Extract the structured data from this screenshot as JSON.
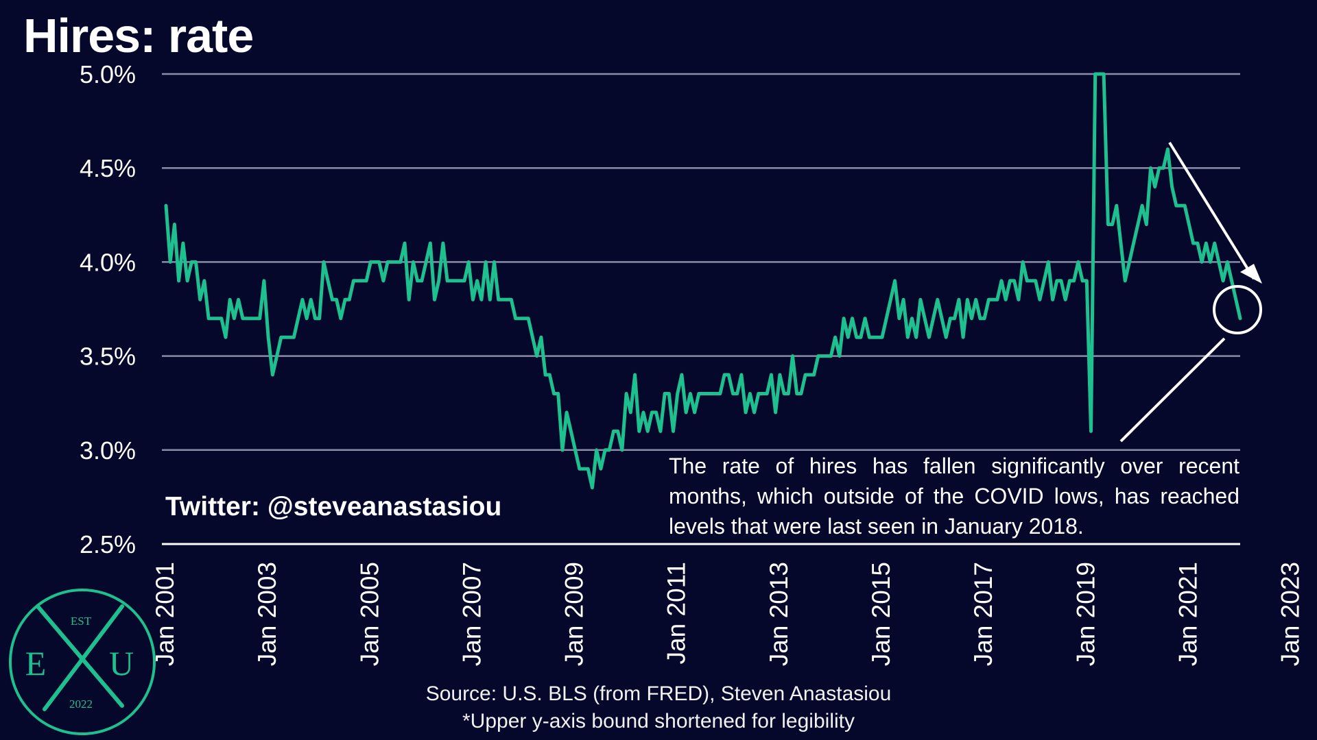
{
  "title": "Hires: rate",
  "twitter_handle": "Twitter: @steveanastasiou",
  "annotation": "The rate of hires has fallen significantly over recent months, which outside of the COVID lows, has reached levels that were last seen in January 2018.",
  "source": "Source: U.S. BLS (from FRED), Steven Anastasiou",
  "footnote": "*Upper y-axis bound shortened for legibility",
  "logo": {
    "top": "EST",
    "left": "E",
    "right": "U",
    "bottom": "2022"
  },
  "colors": {
    "background": "#05082a",
    "line": "#1ec08f",
    "grid": "#8a8ca8",
    "text": "#ffffff",
    "logo": "#1ec08f"
  },
  "chart_data": {
    "type": "line",
    "title": "Hires: rate",
    "xlabel": "",
    "ylabel": "",
    "ylim": [
      2.5,
      5.0
    ],
    "grid": true,
    "yticks": [
      "2.5%",
      "3.0%",
      "3.5%",
      "4.0%",
      "4.5%",
      "5.0%"
    ],
    "xticks": [
      "Jan 2001",
      "Jan 2003",
      "Jan 2005",
      "Jan 2007",
      "Jan 2009",
      "Jan 2011",
      "Jan 2013",
      "Jan 2015",
      "Jan 2017",
      "Jan 2019",
      "Jan 2021",
      "Jan 2023"
    ],
    "start": "Jan 2001",
    "frequency": "monthly",
    "series": [
      {
        "values": [
          4.3,
          4.0,
          4.2,
          3.9,
          4.1,
          3.9,
          4.0,
          4.0,
          3.8,
          3.9,
          3.7,
          3.7,
          3.7,
          3.7,
          3.6,
          3.8,
          3.7,
          3.8,
          3.7,
          3.7,
          3.7,
          3.7,
          3.7,
          3.9,
          3.6,
          3.4,
          3.5,
          3.6,
          3.6,
          3.6,
          3.6,
          3.7,
          3.8,
          3.7,
          3.8,
          3.7,
          3.7,
          4.0,
          3.9,
          3.8,
          3.8,
          3.7,
          3.8,
          3.8,
          3.9,
          3.9,
          3.9,
          3.9,
          4.0,
          4.0,
          4.0,
          3.9,
          4.0,
          4.0,
          4.0,
          4.0,
          4.1,
          3.8,
          4.0,
          3.9,
          3.9,
          4.0,
          4.1,
          3.8,
          3.9,
          4.1,
          3.9,
          3.9,
          3.9,
          3.9,
          3.9,
          4.0,
          3.8,
          3.9,
          3.8,
          4.0,
          3.8,
          4.0,
          3.8,
          3.8,
          3.8,
          3.8,
          3.7,
          3.7,
          3.7,
          3.7,
          3.6,
          3.5,
          3.6,
          3.4,
          3.4,
          3.3,
          3.3,
          3.0,
          3.2,
          3.1,
          3.0,
          2.9,
          2.9,
          2.9,
          2.8,
          3.0,
          2.9,
          3.0,
          3.0,
          3.1,
          3.1,
          3.0,
          3.3,
          3.2,
          3.4,
          3.1,
          3.2,
          3.1,
          3.2,
          3.2,
          3.1,
          3.3,
          3.3,
          3.1,
          3.3,
          3.4,
          3.2,
          3.3,
          3.2,
          3.3,
          3.3,
          3.3,
          3.3,
          3.3,
          3.3,
          3.4,
          3.4,
          3.3,
          3.3,
          3.4,
          3.2,
          3.3,
          3.2,
          3.3,
          3.3,
          3.3,
          3.4,
          3.2,
          3.4,
          3.3,
          3.3,
          3.5,
          3.3,
          3.3,
          3.4,
          3.4,
          3.4,
          3.5,
          3.5,
          3.5,
          3.5,
          3.6,
          3.5,
          3.7,
          3.6,
          3.7,
          3.6,
          3.6,
          3.7,
          3.6,
          3.6,
          3.6,
          3.6,
          3.7,
          3.8,
          3.9,
          3.7,
          3.8,
          3.6,
          3.7,
          3.6,
          3.8,
          3.7,
          3.6,
          3.7,
          3.8,
          3.7,
          3.6,
          3.7,
          3.7,
          3.8,
          3.6,
          3.8,
          3.7,
          3.8,
          3.7,
          3.7,
          3.8,
          3.8,
          3.8,
          3.9,
          3.8,
          3.9,
          3.9,
          3.8,
          4.0,
          3.9,
          3.9,
          3.9,
          3.8,
          3.9,
          4.0,
          3.8,
          3.9,
          3.9,
          3.8,
          3.9,
          3.9,
          4.0,
          3.9,
          3.9,
          3.1,
          5.0,
          5.0,
          5.0,
          4.2,
          4.2,
          4.3,
          4.1,
          3.9,
          4.0,
          4.1,
          4.2,
          4.3,
          4.2,
          4.5,
          4.4,
          4.5,
          4.5,
          4.6,
          4.4,
          4.3,
          4.3,
          4.3,
          4.2,
          4.1,
          4.1,
          4.0,
          4.1,
          4.0,
          4.1,
          4.0,
          3.9,
          4.0,
          3.9,
          3.8,
          3.7
        ]
      }
    ]
  }
}
